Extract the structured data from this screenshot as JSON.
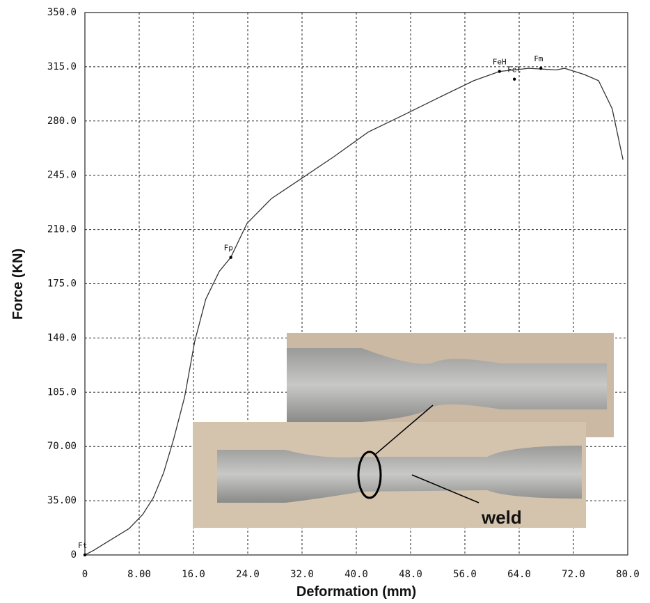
{
  "chart_data": {
    "type": "line",
    "xlabel": "Deformation (mm)",
    "ylabel": "Force (KN)",
    "x": [
      0,
      1.3,
      3.9,
      6.5,
      8.5,
      10.1,
      11.6,
      13.1,
      14.7,
      16.2,
      17.8,
      19.8,
      21.5,
      23.9,
      27.5,
      31.6,
      36.7,
      41.8,
      47.0,
      52.1,
      57.3,
      61.1,
      65.4,
      69.5,
      70.7,
      73.6,
      75.7,
      77.7,
      79.3
    ],
    "values": [
      0,
      3,
      10,
      17,
      26,
      37,
      53,
      75,
      102,
      138,
      165,
      183,
      192,
      214,
      230,
      242,
      257,
      273,
      284,
      295,
      306,
      312,
      314,
      313,
      314,
      310,
      306,
      288,
      255
    ],
    "color": "#333333",
    "annotations": [
      {
        "label": "Ft",
        "x": 0,
        "y": 0
      },
      {
        "label": "Fp",
        "x": 21.5,
        "y": 192
      },
      {
        "label": "FeH",
        "x": 61.1,
        "y": 312
      },
      {
        "label": "Fel",
        "x": 63.3,
        "y": 307
      },
      {
        "label": "Fm",
        "x": 67.2,
        "y": 314
      }
    ],
    "xlim": [
      0,
      80
    ],
    "xticks": [
      0,
      {
        "value": 8,
        "label": "8.00"
      },
      {
        "value": 16,
        "label": "16.0"
      },
      {
        "value": 24,
        "label": "24.0"
      },
      {
        "value": 32,
        "label": "32.0"
      },
      {
        "value": 40,
        "label": "40.0"
      },
      {
        "value": 48,
        "label": "48.0"
      },
      {
        "value": 56,
        "label": "56.0"
      },
      {
        "value": 64,
        "label": "64.0"
      },
      {
        "value": 72,
        "label": "72.0"
      },
      {
        "value": 80,
        "label": "80.0"
      }
    ],
    "ylim": [
      0,
      350
    ],
    "yticks": [
      0,
      {
        "value": 35,
        "label": "35.00"
      },
      {
        "value": 70,
        "label": "70.00"
      },
      {
        "value": 105,
        "label": "105.0"
      },
      {
        "value": 140,
        "label": "140.0"
      },
      {
        "value": 175,
        "label": "175.0"
      },
      {
        "value": 210,
        "label": "210.0"
      },
      {
        "value": 245,
        "label": "245.0"
      },
      {
        "value": 280,
        "label": "280.0"
      },
      {
        "value": 315,
        "label": "315.0"
      },
      {
        "value": 350,
        "label": "350.0"
      }
    ],
    "grid": true,
    "inset_label": "weld"
  }
}
